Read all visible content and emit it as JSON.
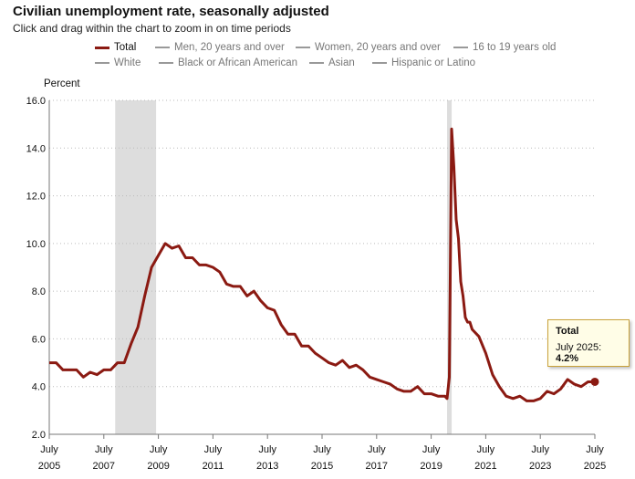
{
  "header": {
    "title": "Civilian unemployment rate, seasonally adjusted",
    "subtitle": "Click and drag within the chart to zoom in on time periods"
  },
  "legend": {
    "items": [
      {
        "label": "Total",
        "active": true
      },
      {
        "label": "Men, 20 years and over",
        "active": false
      },
      {
        "label": "Women, 20 years and over",
        "active": false
      },
      {
        "label": "16 to 19 years old",
        "active": false
      },
      {
        "label": "White",
        "active": false
      },
      {
        "label": "Black or African American",
        "active": false
      },
      {
        "label": "Asian",
        "active": false
      },
      {
        "label": "Hispanic or Latino",
        "active": false
      }
    ]
  },
  "tooltip": {
    "title": "Total",
    "label": "July 2025: ",
    "value": "4.2%"
  },
  "colors": {
    "series": "#8b1a12",
    "recession": "#dddddd",
    "grid": "#bbbbbb"
  },
  "chart_data": {
    "type": "line",
    "ylabel": "Percent",
    "ylim": [
      2.0,
      16.0
    ],
    "yticks": [
      "2.0",
      "4.0",
      "6.0",
      "8.0",
      "10.0",
      "12.0",
      "14.0",
      "16.0"
    ],
    "xticks": [
      {
        "month": "July",
        "year": "2005"
      },
      {
        "month": "July",
        "year": "2007"
      },
      {
        "month": "July",
        "year": "2009"
      },
      {
        "month": "July",
        "year": "2011"
      },
      {
        "month": "July",
        "year": "2013"
      },
      {
        "month": "July",
        "year": "2015"
      },
      {
        "month": "July",
        "year": "2017"
      },
      {
        "month": "July",
        "year": "2019"
      },
      {
        "month": "July",
        "year": "2021"
      },
      {
        "month": "July",
        "year": "2023"
      },
      {
        "month": "July",
        "year": "2025"
      }
    ],
    "xlim": [
      "2005-07",
      "2025-07"
    ],
    "grid": true,
    "recessions": [
      [
        "2007-12",
        "2009-06"
      ],
      [
        "2020-02",
        "2020-04"
      ]
    ],
    "series": [
      {
        "name": "Total",
        "x": [
          "2005-07",
          "2005-10",
          "2006-01",
          "2006-04",
          "2006-07",
          "2006-10",
          "2007-01",
          "2007-04",
          "2007-07",
          "2007-10",
          "2008-01",
          "2008-04",
          "2008-07",
          "2008-10",
          "2009-01",
          "2009-04",
          "2009-07",
          "2009-10",
          "2010-01",
          "2010-04",
          "2010-07",
          "2010-10",
          "2011-01",
          "2011-04",
          "2011-07",
          "2011-10",
          "2012-01",
          "2012-04",
          "2012-07",
          "2012-10",
          "2013-01",
          "2013-04",
          "2013-07",
          "2013-10",
          "2014-01",
          "2014-04",
          "2014-07",
          "2014-10",
          "2015-01",
          "2015-04",
          "2015-07",
          "2015-10",
          "2016-01",
          "2016-04",
          "2016-07",
          "2016-10",
          "2017-01",
          "2017-04",
          "2017-07",
          "2017-10",
          "2018-01",
          "2018-04",
          "2018-07",
          "2018-10",
          "2019-01",
          "2019-04",
          "2019-07",
          "2019-10",
          "2020-01",
          "2020-02",
          "2020-03",
          "2020-04",
          "2020-05",
          "2020-06",
          "2020-07",
          "2020-08",
          "2020-09",
          "2020-10",
          "2020-11",
          "2020-12",
          "2021-01",
          "2021-04",
          "2021-07",
          "2021-10",
          "2022-01",
          "2022-04",
          "2022-07",
          "2022-10",
          "2023-01",
          "2023-04",
          "2023-07",
          "2023-10",
          "2024-01",
          "2024-04",
          "2024-07",
          "2024-10",
          "2025-01",
          "2025-04",
          "2025-07"
        ],
        "values": [
          5.0,
          5.0,
          4.7,
          4.7,
          4.7,
          4.4,
          4.6,
          4.5,
          4.7,
          4.7,
          5.0,
          5.0,
          5.8,
          6.5,
          7.8,
          9.0,
          9.5,
          10.0,
          9.8,
          9.9,
          9.4,
          9.4,
          9.1,
          9.1,
          9.0,
          8.8,
          8.3,
          8.2,
          8.2,
          7.8,
          8.0,
          7.6,
          7.3,
          7.2,
          6.6,
          6.2,
          6.2,
          5.7,
          5.7,
          5.4,
          5.2,
          5.0,
          4.9,
          5.1,
          4.8,
          4.9,
          4.7,
          4.4,
          4.3,
          4.2,
          4.1,
          3.9,
          3.8,
          3.8,
          4.0,
          3.7,
          3.7,
          3.6,
          3.6,
          3.5,
          4.4,
          14.8,
          13.2,
          11.0,
          10.2,
          8.4,
          7.8,
          6.9,
          6.7,
          6.7,
          6.4,
          6.1,
          5.4,
          4.5,
          4.0,
          3.6,
          3.5,
          3.6,
          3.4,
          3.4,
          3.5,
          3.8,
          3.7,
          3.9,
          4.3,
          4.1,
          4.0,
          4.2,
          4.2
        ]
      }
    ]
  }
}
